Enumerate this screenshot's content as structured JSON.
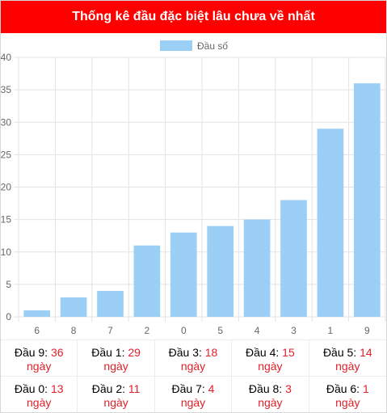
{
  "header": {
    "title": "Thống kê đầu đặc biệt lâu chưa về nhất"
  },
  "chart_data": {
    "type": "bar",
    "title": "",
    "xlabel": "",
    "ylabel": "",
    "legend": {
      "position": "top",
      "entries": [
        "Đầu số"
      ]
    },
    "categories": [
      "6",
      "8",
      "7",
      "2",
      "0",
      "5",
      "4",
      "3",
      "1",
      "9"
    ],
    "series": [
      {
        "name": "Đầu số",
        "values": [
          1,
          3,
          4,
          11,
          13,
          14,
          15,
          18,
          29,
          36
        ]
      }
    ],
    "ylim": [
      0,
      40
    ],
    "yticks": [
      "0",
      "5",
      "10",
      "15",
      "20",
      "25",
      "30",
      "35",
      "40"
    ],
    "grid": true,
    "colors": {
      "bar": "#9ccff5",
      "grid": "#e3e3e3",
      "tick": "#666666"
    }
  },
  "stats": [
    {
      "label": "Đầu 9:",
      "value": "36",
      "unit": "ngày"
    },
    {
      "label": "Đầu 1:",
      "value": "29",
      "unit": "ngày"
    },
    {
      "label": "Đầu 3:",
      "value": "18",
      "unit": "ngày"
    },
    {
      "label": "Đầu 4:",
      "value": "15",
      "unit": "ngày"
    },
    {
      "label": "Đầu 5:",
      "value": "14",
      "unit": "ngày"
    },
    {
      "label": "Đầu 0:",
      "value": "13",
      "unit": "ngày"
    },
    {
      "label": "Đầu 2:",
      "value": "11",
      "unit": "ngày"
    },
    {
      "label": "Đầu 7:",
      "value": "4",
      "unit": "ngày"
    },
    {
      "label": "Đầu 8:",
      "value": "3",
      "unit": "ngày"
    },
    {
      "label": "Đầu 6:",
      "value": "1",
      "unit": "ngày"
    }
  ],
  "colors": {
    "header_bg": "#ff0000",
    "header_text": "#ffffff",
    "accent_number": "#e0202a"
  }
}
